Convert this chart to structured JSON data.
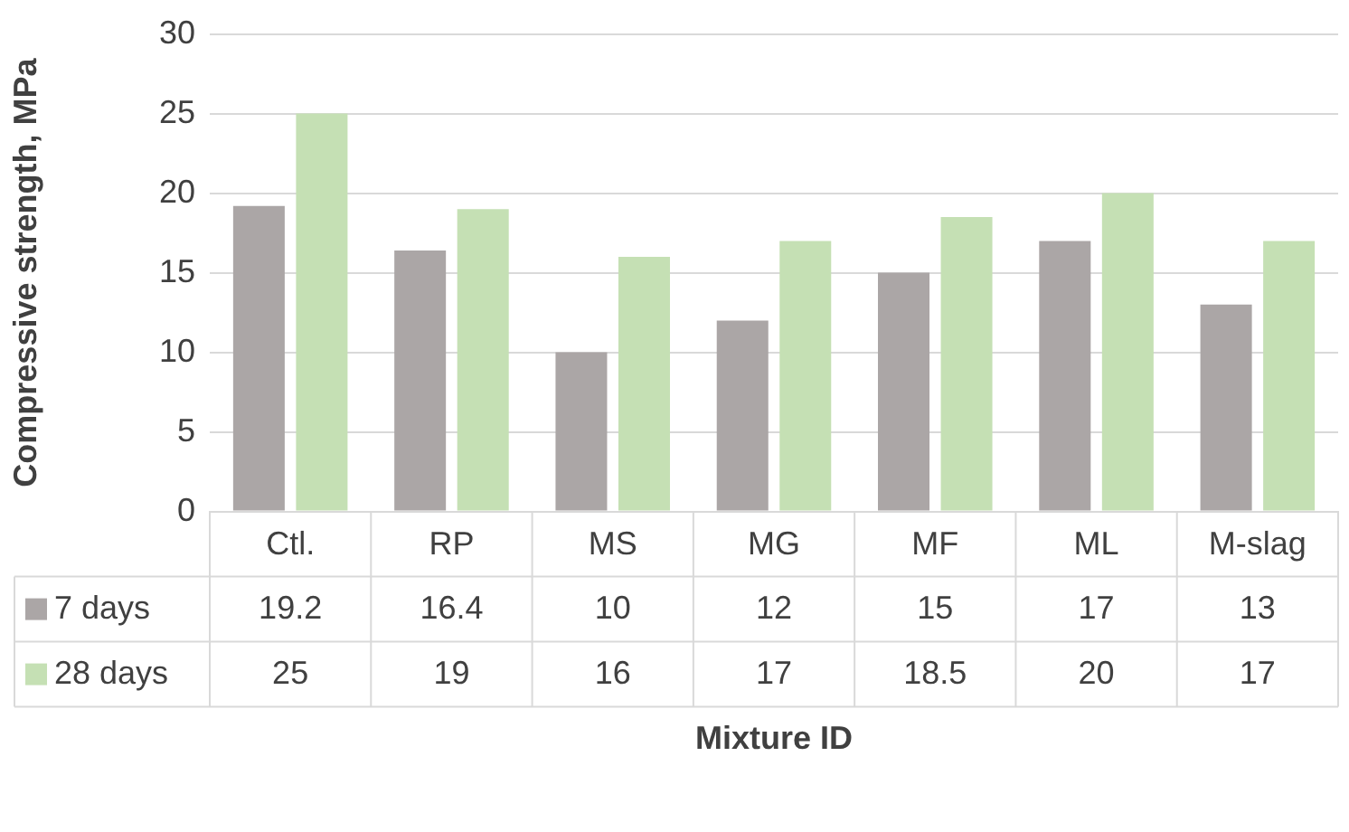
{
  "chart_data": {
    "type": "bar",
    "xlabel": "Mixture ID",
    "ylabel": "Compressive strength, MPa",
    "categories": [
      "Ctl.",
      "RP",
      "MS",
      "MG",
      "MF",
      "ML",
      "M-slag"
    ],
    "series": [
      {
        "name": "7 days",
        "color": "#aba6a6",
        "values": [
          19.2,
          16.4,
          10,
          12,
          15,
          17,
          13
        ]
      },
      {
        "name": "28 days",
        "color": "#c5e0b4",
        "values": [
          25,
          19,
          16,
          17,
          18.5,
          20,
          17
        ]
      }
    ],
    "ylim": [
      0,
      30
    ],
    "yticks": [
      0,
      5,
      10,
      15,
      20,
      25,
      30
    ],
    "grid": "y",
    "legend": "bottom",
    "data_labels": true
  }
}
